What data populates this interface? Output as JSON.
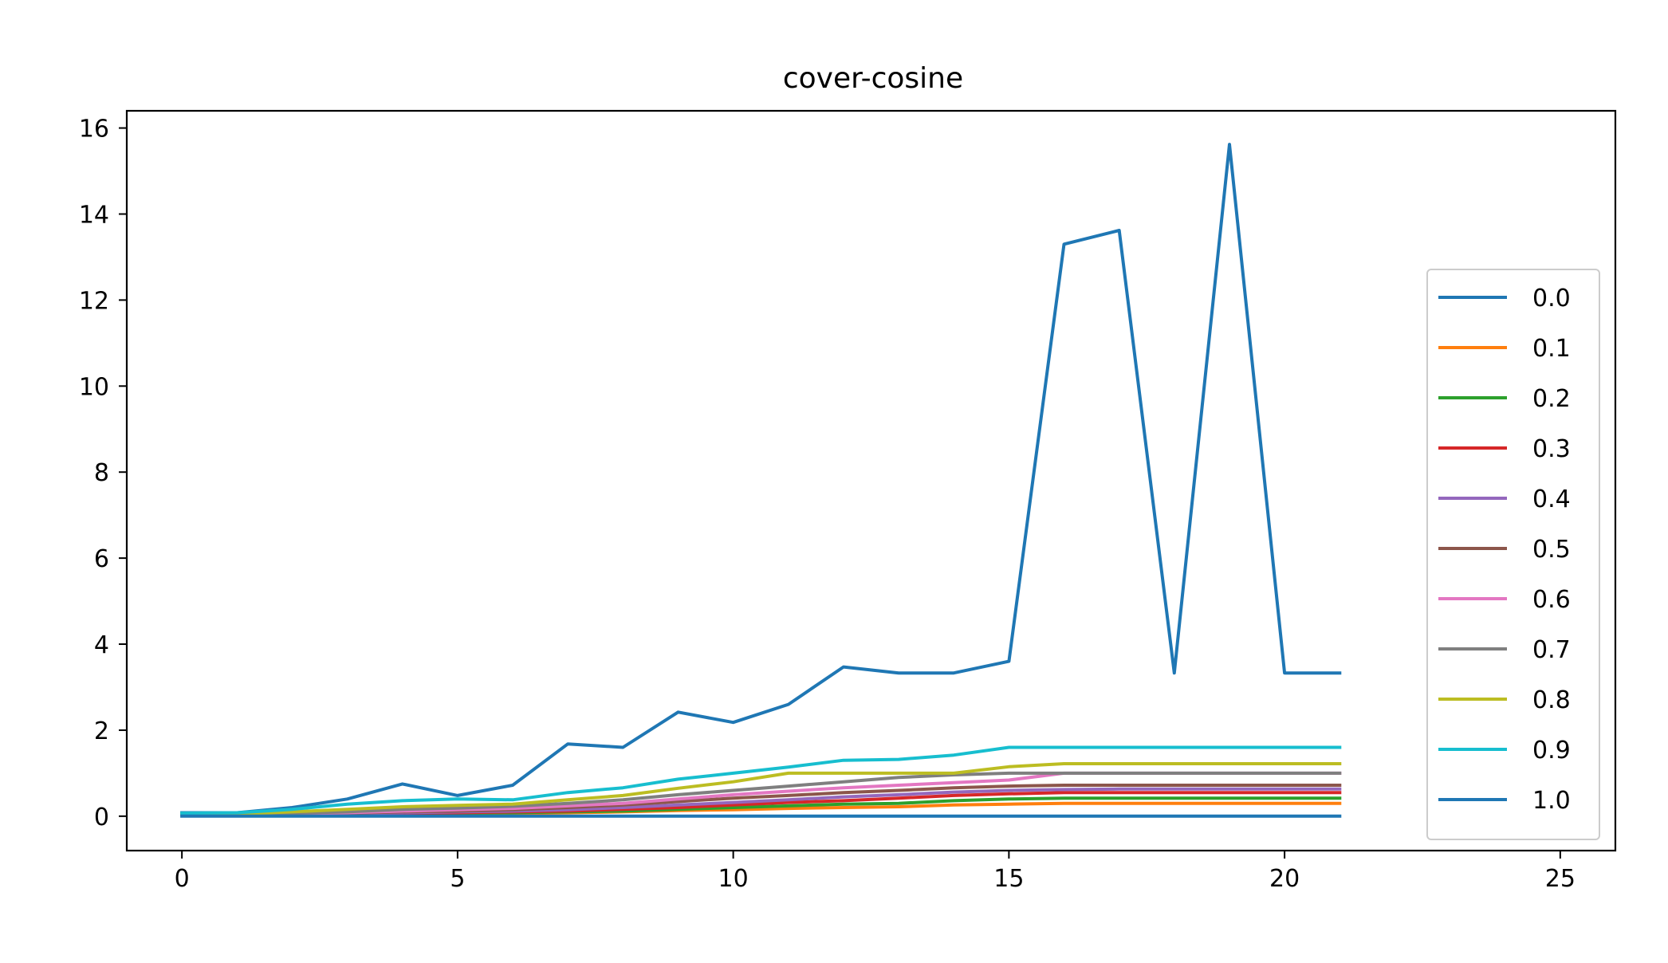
{
  "chart_data": {
    "type": "line",
    "title": "cover-cosine",
    "xlabel": "",
    "ylabel": "",
    "xlim": [
      -1,
      26
    ],
    "ylim": [
      -0.8,
      16.4
    ],
    "xticks": [
      0,
      5,
      10,
      15,
      20,
      25
    ],
    "yticks": [
      0,
      2,
      4,
      6,
      8,
      10,
      12,
      14,
      16
    ],
    "grid": false,
    "legend_position": "lower right",
    "x": [
      0,
      1,
      2,
      3,
      4,
      5,
      6,
      7,
      8,
      9,
      10,
      11,
      12,
      13,
      14,
      15,
      16,
      17,
      18,
      19,
      20,
      21
    ],
    "series": [
      {
        "name": "0.0",
        "color": "#1f77b4",
        "values": [
          0.08,
          0.08,
          0.2,
          0.4,
          0.75,
          0.48,
          0.72,
          1.68,
          1.6,
          2.42,
          2.18,
          2.6,
          3.47,
          3.33,
          3.33,
          3.6,
          13.3,
          13.62,
          3.33,
          15.62,
          3.33,
          3.33
        ]
      },
      {
        "name": "0.1",
        "color": "#ff7f0e",
        "values": [
          0.05,
          0.05,
          0.05,
          0.05,
          0.05,
          0.05,
          0.06,
          0.08,
          0.1,
          0.13,
          0.15,
          0.18,
          0.2,
          0.22,
          0.26,
          0.28,
          0.3,
          0.3,
          0.3,
          0.3,
          0.3,
          0.3
        ]
      },
      {
        "name": "0.2",
        "color": "#2ca02c",
        "values": [
          0.05,
          0.05,
          0.05,
          0.05,
          0.06,
          0.07,
          0.08,
          0.1,
          0.12,
          0.16,
          0.2,
          0.24,
          0.28,
          0.3,
          0.36,
          0.4,
          0.42,
          0.42,
          0.42,
          0.42,
          0.42,
          0.42
        ]
      },
      {
        "name": "0.3",
        "color": "#d62728",
        "values": [
          0.05,
          0.05,
          0.05,
          0.05,
          0.07,
          0.08,
          0.1,
          0.12,
          0.16,
          0.2,
          0.26,
          0.32,
          0.36,
          0.42,
          0.48,
          0.52,
          0.55,
          0.55,
          0.55,
          0.55,
          0.55,
          0.55
        ]
      },
      {
        "name": "0.4",
        "color": "#9467bd",
        "values": [
          0.05,
          0.05,
          0.05,
          0.06,
          0.08,
          0.1,
          0.12,
          0.15,
          0.2,
          0.26,
          0.32,
          0.38,
          0.45,
          0.5,
          0.56,
          0.6,
          0.62,
          0.63,
          0.63,
          0.63,
          0.63,
          0.63
        ]
      },
      {
        "name": "0.5",
        "color": "#8c564b",
        "values": [
          0.05,
          0.05,
          0.06,
          0.07,
          0.1,
          0.12,
          0.15,
          0.2,
          0.26,
          0.34,
          0.42,
          0.48,
          0.55,
          0.6,
          0.66,
          0.7,
          0.72,
          0.72,
          0.72,
          0.72,
          0.72,
          0.72
        ]
      },
      {
        "name": "0.6",
        "color": "#e377c2",
        "values": [
          0.05,
          0.05,
          0.06,
          0.08,
          0.12,
          0.15,
          0.18,
          0.24,
          0.3,
          0.4,
          0.5,
          0.58,
          0.66,
          0.72,
          0.78,
          0.84,
          1.0,
          1.0,
          1.0,
          1.0,
          1.0,
          1.0
        ]
      },
      {
        "name": "0.7",
        "color": "#7f7f7f",
        "values": [
          0.05,
          0.05,
          0.07,
          0.1,
          0.16,
          0.19,
          0.23,
          0.3,
          0.38,
          0.5,
          0.6,
          0.7,
          0.8,
          0.9,
          0.96,
          1.0,
          1.0,
          1.0,
          1.0,
          1.0,
          1.0,
          1.0
        ]
      },
      {
        "name": "0.8",
        "color": "#bcbd22",
        "values": [
          0.05,
          0.05,
          0.1,
          0.16,
          0.22,
          0.25,
          0.28,
          0.38,
          0.48,
          0.65,
          0.8,
          1.0,
          1.0,
          1.0,
          1.0,
          1.15,
          1.22,
          1.22,
          1.22,
          1.22,
          1.22,
          1.22
        ]
      },
      {
        "name": "0.9",
        "color": "#17becf",
        "values": [
          0.07,
          0.08,
          0.16,
          0.28,
          0.36,
          0.4,
          0.38,
          0.55,
          0.66,
          0.86,
          1.0,
          1.14,
          1.3,
          1.32,
          1.42,
          1.6,
          1.6,
          1.6,
          1.6,
          1.6,
          1.6,
          1.6
        ]
      },
      {
        "name": "1.0",
        "color": "#1f77b4",
        "values": [
          0.0,
          0.0,
          0.0,
          0.0,
          0.0,
          0.0,
          0.0,
          0.0,
          0.0,
          0.0,
          0.0,
          0.0,
          0.0,
          0.0,
          0.0,
          0.0,
          0.0,
          0.0,
          0.0,
          0.0,
          0.0,
          0.0
        ]
      }
    ]
  }
}
